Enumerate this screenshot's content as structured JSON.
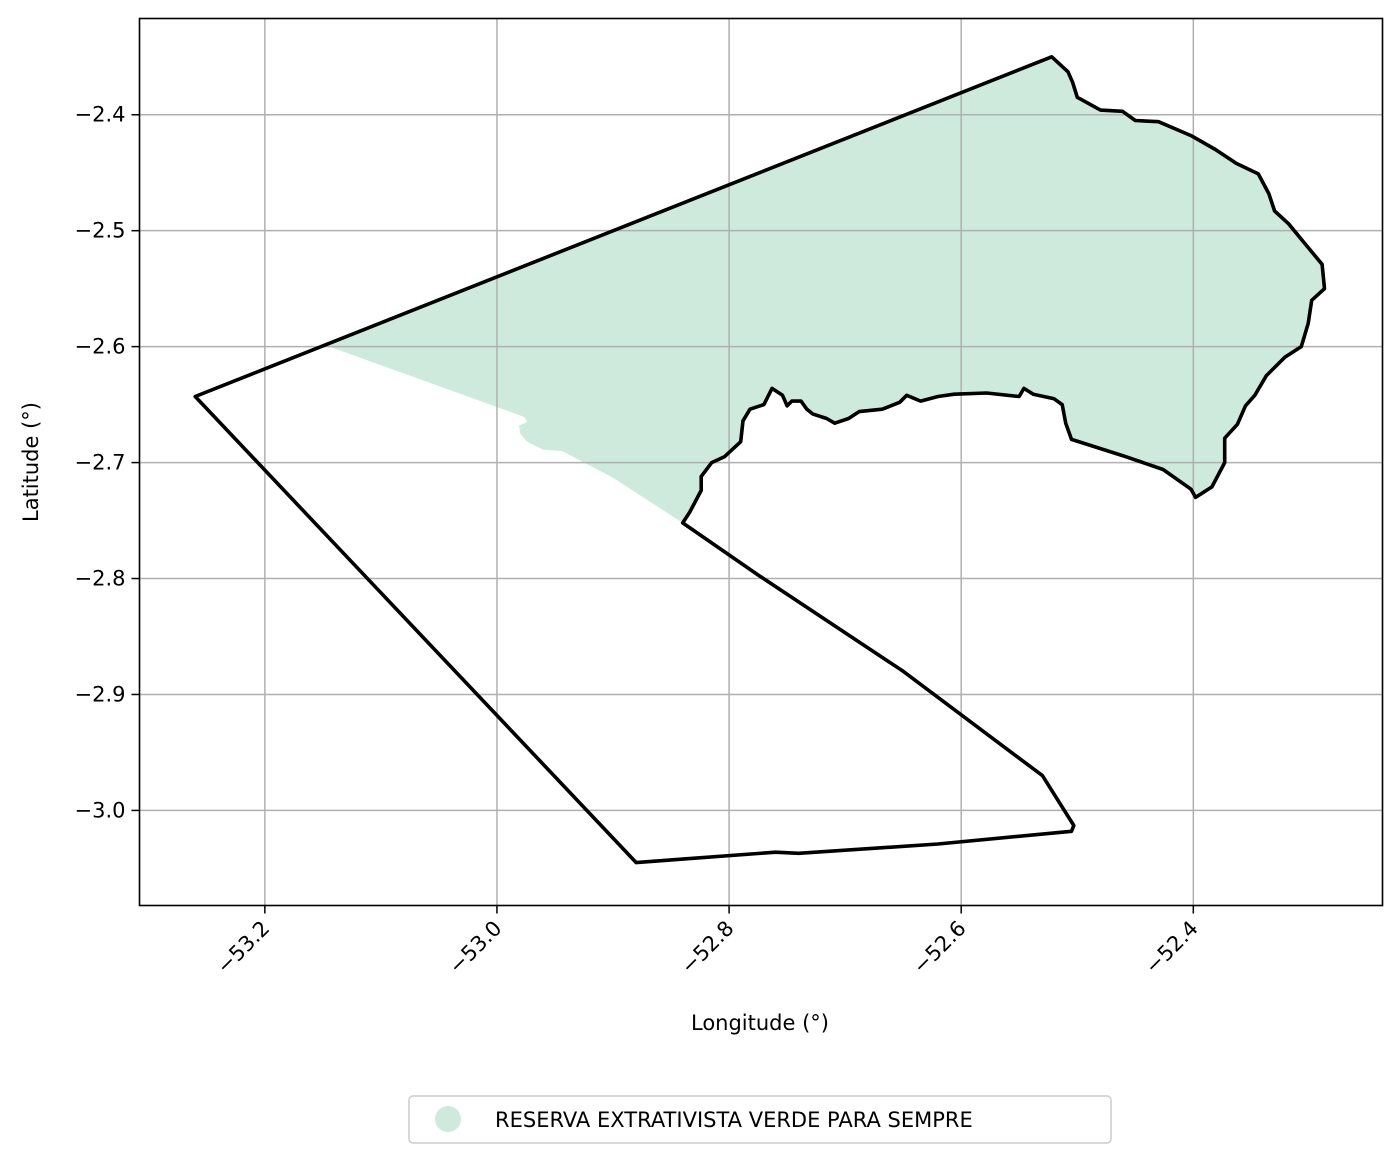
{
  "chart_data": {
    "type": "map",
    "xlabel": "Longitude (°)",
    "ylabel": "Latitude (°)",
    "xlim": [
      -53.308,
      -52.237
    ],
    "ylim": [
      -3.082,
      -2.317
    ],
    "grid": true,
    "x_ticks": [
      {
        "value": -53.2,
        "label": "−53.2"
      },
      {
        "value": -53.0,
        "label": "−53.0"
      },
      {
        "value": -52.8,
        "label": "−52.8"
      },
      {
        "value": -52.6,
        "label": "−52.6"
      },
      {
        "value": -52.4,
        "label": "−52.4"
      }
    ],
    "y_ticks": [
      {
        "value": -2.4,
        "label": "−2.4"
      },
      {
        "value": -2.5,
        "label": "−2.5"
      },
      {
        "value": -2.6,
        "label": "−2.6"
      },
      {
        "value": -2.7,
        "label": "−2.7"
      },
      {
        "value": -2.8,
        "label": "−2.8"
      },
      {
        "value": -2.9,
        "label": "−2.9"
      },
      {
        "value": -3.0,
        "label": "−3.0"
      }
    ],
    "filled_area": {
      "name": "RESERVA EXTRATIVISTA VERDE PARA SEMPRE",
      "color": "#ceeadd",
      "coordinates": [
        [
          -53.147,
          -2.599
        ],
        [
          -52.521,
          -2.35
        ],
        [
          -52.508,
          -2.363
        ],
        [
          -52.504,
          -2.372
        ],
        [
          -52.5,
          -2.385
        ],
        [
          -52.48,
          -2.396
        ],
        [
          -52.461,
          -2.397
        ],
        [
          -52.45,
          -2.405
        ],
        [
          -52.43,
          -2.406
        ],
        [
          -52.402,
          -2.418
        ],
        [
          -52.381,
          -2.43
        ],
        [
          -52.363,
          -2.442
        ],
        [
          -52.344,
          -2.451
        ],
        [
          -52.335,
          -2.468
        ],
        [
          -52.33,
          -2.483
        ],
        [
          -52.318,
          -2.494
        ],
        [
          -52.304,
          -2.511
        ],
        [
          -52.289,
          -2.529
        ],
        [
          -52.287,
          -2.55
        ],
        [
          -52.298,
          -2.56
        ],
        [
          -52.301,
          -2.58
        ],
        [
          -52.307,
          -2.6
        ],
        [
          -52.321,
          -2.609
        ],
        [
          -52.337,
          -2.625
        ],
        [
          -52.347,
          -2.642
        ],
        [
          -52.355,
          -2.651
        ],
        [
          -52.362,
          -2.667
        ],
        [
          -52.373,
          -2.679
        ],
        [
          -52.373,
          -2.7
        ],
        [
          -52.384,
          -2.721
        ],
        [
          -52.398,
          -2.73
        ],
        [
          -52.402,
          -2.723
        ],
        [
          -52.426,
          -2.706
        ],
        [
          -52.461,
          -2.694
        ],
        [
          -52.505,
          -2.68
        ],
        [
          -52.51,
          -2.666
        ],
        [
          -52.513,
          -2.65
        ],
        [
          -52.52,
          -2.645
        ],
        [
          -52.538,
          -2.641
        ],
        [
          -52.546,
          -2.636
        ],
        [
          -52.55,
          -2.643
        ],
        [
          -52.578,
          -2.64
        ],
        [
          -52.606,
          -2.641
        ],
        [
          -52.62,
          -2.643
        ],
        [
          -52.635,
          -2.647
        ],
        [
          -52.647,
          -2.642
        ],
        [
          -52.653,
          -2.648
        ],
        [
          -52.668,
          -2.654
        ],
        [
          -52.688,
          -2.656
        ],
        [
          -52.697,
          -2.662
        ],
        [
          -52.709,
          -2.666
        ],
        [
          -52.716,
          -2.662
        ],
        [
          -52.728,
          -2.658
        ],
        [
          -52.733,
          -2.654
        ],
        [
          -52.738,
          -2.647
        ],
        [
          -52.746,
          -2.647
        ],
        [
          -52.75,
          -2.651
        ],
        [
          -52.754,
          -2.642
        ],
        [
          -52.763,
          -2.636
        ],
        [
          -52.77,
          -2.65
        ],
        [
          -52.782,
          -2.654
        ],
        [
          -52.788,
          -2.664
        ],
        [
          -52.79,
          -2.682
        ],
        [
          -52.804,
          -2.695
        ],
        [
          -52.815,
          -2.7
        ],
        [
          -52.824,
          -2.712
        ],
        [
          -52.824,
          -2.724
        ],
        [
          -52.834,
          -2.743
        ],
        [
          -52.84,
          -2.752
        ],
        [
          -52.9,
          -2.713
        ],
        [
          -52.944,
          -2.69
        ],
        [
          -52.96,
          -2.689
        ],
        [
          -52.974,
          -2.682
        ],
        [
          -52.98,
          -2.675
        ],
        [
          -52.981,
          -2.668
        ],
        [
          -52.974,
          -2.665
        ],
        [
          -52.976,
          -2.661
        ],
        [
          -52.981,
          -2.659
        ],
        [
          -53.147,
          -2.599
        ]
      ]
    },
    "boundaries": [
      {
        "name": "boundary-main",
        "coordinates": [
          [
            -53.26,
            -2.643
          ],
          [
            -52.522,
            -2.35
          ],
          [
            -52.508,
            -2.363
          ],
          [
            -52.504,
            -2.372
          ],
          [
            -52.5,
            -2.385
          ],
          [
            -52.48,
            -2.396
          ],
          [
            -52.461,
            -2.397
          ],
          [
            -52.45,
            -2.405
          ],
          [
            -52.43,
            -2.406
          ],
          [
            -52.402,
            -2.418
          ],
          [
            -52.381,
            -2.43
          ],
          [
            -52.363,
            -2.442
          ],
          [
            -52.344,
            -2.451
          ],
          [
            -52.335,
            -2.468
          ],
          [
            -52.33,
            -2.483
          ],
          [
            -52.318,
            -2.494
          ],
          [
            -52.304,
            -2.511
          ],
          [
            -52.289,
            -2.529
          ],
          [
            -52.287,
            -2.55
          ],
          [
            -52.298,
            -2.56
          ],
          [
            -52.301,
            -2.58
          ],
          [
            -52.307,
            -2.6
          ],
          [
            -52.321,
            -2.609
          ],
          [
            -52.337,
            -2.625
          ],
          [
            -52.347,
            -2.642
          ],
          [
            -52.355,
            -2.651
          ],
          [
            -52.362,
            -2.667
          ],
          [
            -52.373,
            -2.679
          ],
          [
            -52.373,
            -2.7
          ],
          [
            -52.384,
            -2.721
          ],
          [
            -52.398,
            -2.73
          ],
          [
            -52.402,
            -2.723
          ],
          [
            -52.426,
            -2.706
          ],
          [
            -52.461,
            -2.694
          ],
          [
            -52.505,
            -2.68
          ],
          [
            -52.51,
            -2.666
          ],
          [
            -52.513,
            -2.65
          ],
          [
            -52.52,
            -2.645
          ],
          [
            -52.538,
            -2.641
          ],
          [
            -52.546,
            -2.636
          ],
          [
            -52.55,
            -2.643
          ],
          [
            -52.578,
            -2.64
          ],
          [
            -52.606,
            -2.641
          ],
          [
            -52.62,
            -2.643
          ],
          [
            -52.635,
            -2.647
          ],
          [
            -52.647,
            -2.642
          ],
          [
            -52.653,
            -2.648
          ],
          [
            -52.668,
            -2.654
          ],
          [
            -52.688,
            -2.656
          ],
          [
            -52.697,
            -2.662
          ],
          [
            -52.709,
            -2.666
          ],
          [
            -52.716,
            -2.662
          ],
          [
            -52.728,
            -2.658
          ],
          [
            -52.733,
            -2.654
          ],
          [
            -52.738,
            -2.647
          ],
          [
            -52.746,
            -2.647
          ],
          [
            -52.75,
            -2.651
          ],
          [
            -52.754,
            -2.642
          ],
          [
            -52.763,
            -2.636
          ],
          [
            -52.77,
            -2.65
          ],
          [
            -52.782,
            -2.654
          ],
          [
            -52.788,
            -2.664
          ],
          [
            -52.79,
            -2.682
          ],
          [
            -52.804,
            -2.695
          ],
          [
            -52.815,
            -2.7
          ],
          [
            -52.824,
            -2.712
          ],
          [
            -52.824,
            -2.724
          ],
          [
            -52.834,
            -2.743
          ],
          [
            -52.84,
            -2.752
          ],
          [
            -52.775,
            -2.797
          ],
          [
            -52.65,
            -2.88
          ],
          [
            -52.53,
            -2.97
          ],
          [
            -52.503,
            -3.013
          ],
          [
            -52.505,
            -3.018
          ],
          [
            -52.62,
            -3.029
          ],
          [
            -52.74,
            -3.037
          ],
          [
            -52.76,
            -3.036
          ],
          [
            -52.84,
            -3.042
          ],
          [
            -52.88,
            -3.045
          ],
          [
            -53.26,
            -2.643
          ]
        ]
      }
    ],
    "legend": {
      "entries": [
        {
          "label": "RESERVA EXTRATIVISTA VERDE PARA SEMPRE",
          "color": "#ceeadd",
          "marker": "circle"
        }
      ],
      "placement": "bottom-center"
    },
    "colors": {
      "grid": "#b0b0b0",
      "boundary": "#000000",
      "legend_border": "#cccccc"
    }
  }
}
